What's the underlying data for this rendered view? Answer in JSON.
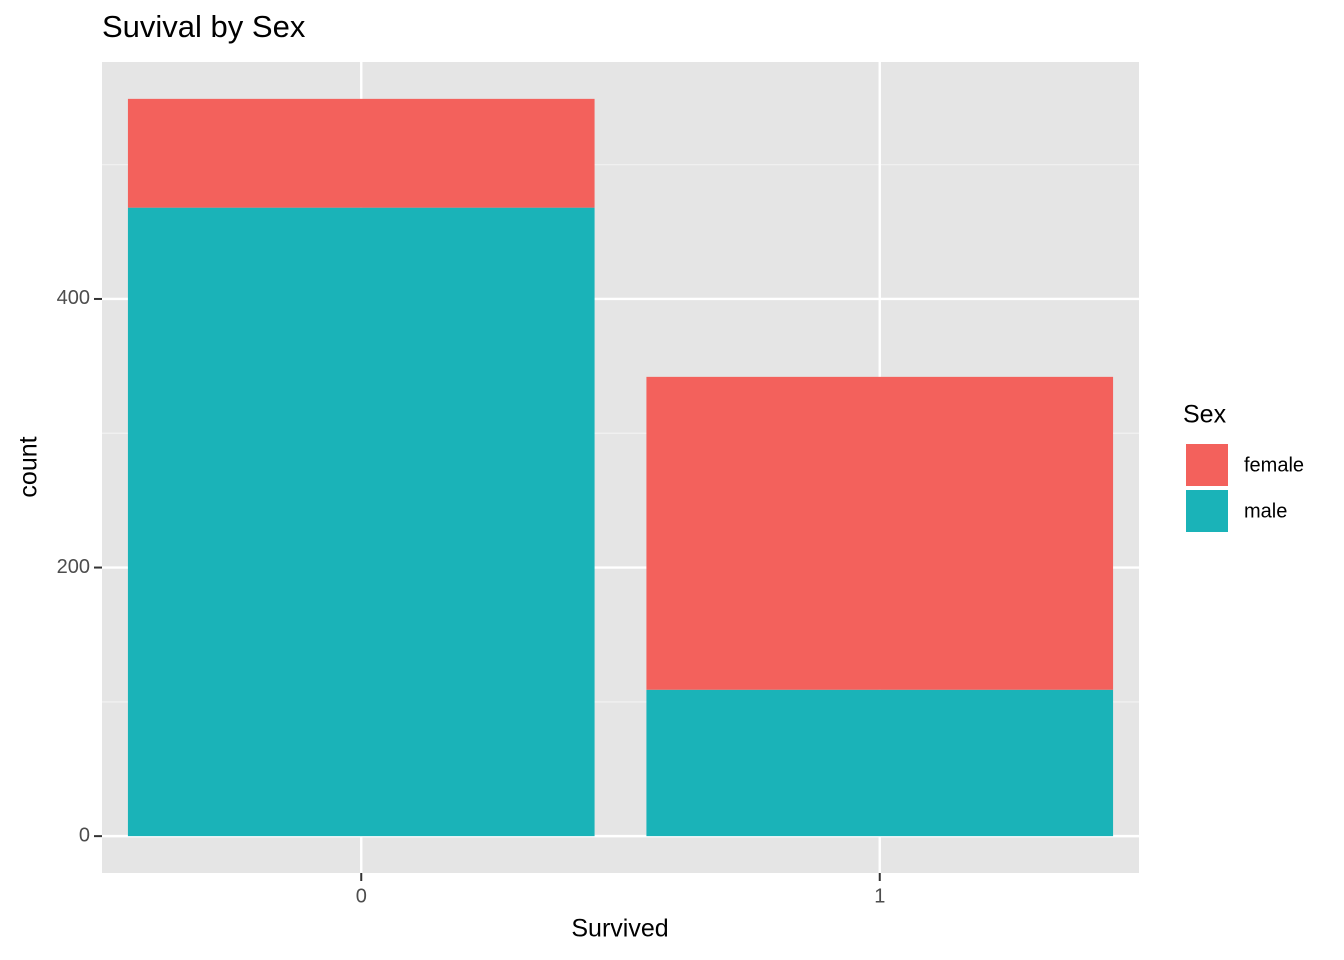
{
  "chart_data": {
    "type": "stacked_bar",
    "title": "Suvival by Sex",
    "x_label": "Survived",
    "y_label": "count",
    "categories": [
      "0",
      "1"
    ],
    "series": [
      {
        "name": "female",
        "color": "#F3615C",
        "values": [
          81,
          233
        ]
      },
      {
        "name": "male",
        "color": "#1AB3B8",
        "values": [
          468,
          109
        ]
      }
    ],
    "legend_title": "Sex",
    "legend": "right",
    "ylim": [
      -27.45,
      576.45
    ],
    "yticks": [
      0,
      200,
      400
    ],
    "y_minor_ticks": [
      100,
      300,
      500
    ],
    "grid": true
  }
}
